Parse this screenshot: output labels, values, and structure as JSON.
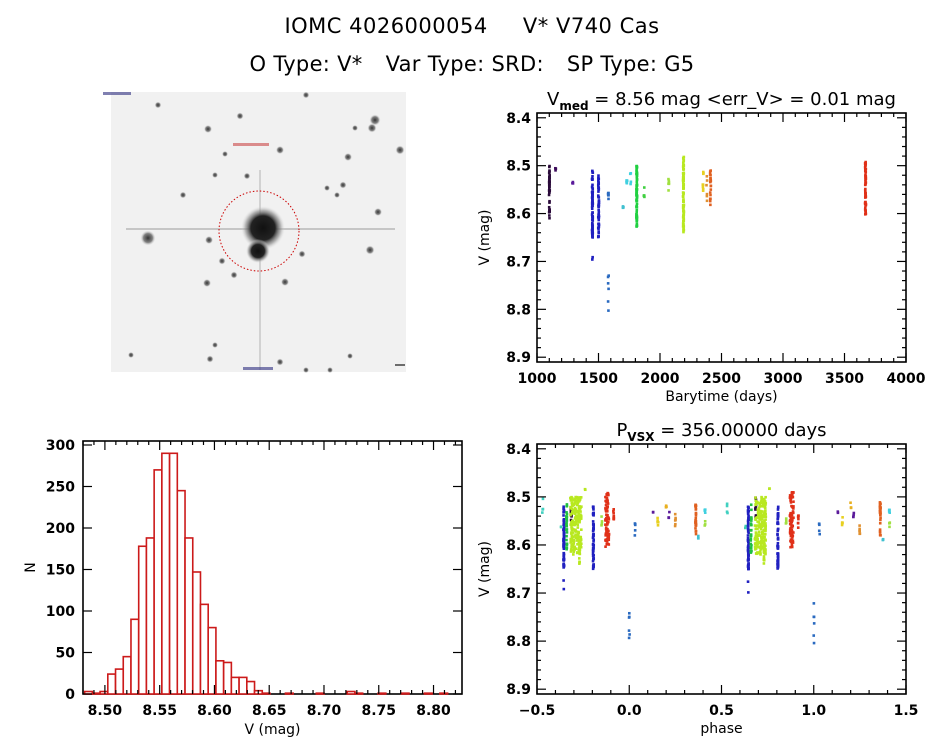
{
  "header": {
    "object_id": "IOMC 4026000054",
    "object_name": "V* V740 Cas",
    "otype": "O Type: V*",
    "vartype": "Var Type: SRD:",
    "sptype": "SP Type: G5"
  },
  "sky_image": {
    "description": "grayscale finder chart with red circle around target star",
    "circle_color": "#cc0000"
  },
  "chart_data": [
    {
      "id": "light-curve",
      "type": "scatter",
      "title_main": "V",
      "title_sub": "med",
      "title_rest": " = 8.56 mag <err_V> = 0.01 mag",
      "xlabel": "Barytime (days)",
      "ylabel": "V (mag)",
      "xlim": [
        1000,
        4000
      ],
      "ylim": [
        8.91,
        8.39
      ],
      "y_inverted": true,
      "xticks": [
        "1000",
        "1500",
        "2000",
        "2500",
        "3000",
        "3500",
        "4000"
      ],
      "yticks": [
        "8.4",
        "8.5",
        "8.6",
        "8.7",
        "8.8",
        "8.9"
      ],
      "series": [
        {
          "color": "#2a0a3a",
          "x": 1100,
          "ymin": 8.5,
          "ymax": 8.61,
          "n": 40
        },
        {
          "color": "#3c0a5a",
          "x": 1150,
          "ymin": 8.5,
          "ymax": 8.51,
          "n": 3
        },
        {
          "color": "#5a1a9a",
          "x": 1290,
          "ymin": 8.53,
          "ymax": 8.54,
          "n": 3
        },
        {
          "color": "#2020c0",
          "x": 1450,
          "ymin": 8.51,
          "ymax": 8.65,
          "n": 80
        },
        {
          "color": "#2020c0",
          "x": 1450,
          "ymin": 8.67,
          "ymax": 8.7,
          "n": 2
        },
        {
          "color": "#2020c0",
          "x": 1500,
          "ymin": 8.52,
          "ymax": 8.65,
          "n": 50
        },
        {
          "color": "#2a6ac0",
          "x": 1580,
          "ymin": 8.555,
          "ymax": 8.58,
          "n": 6
        },
        {
          "color": "#2a6ac0",
          "x": 1580,
          "ymin": 8.72,
          "ymax": 8.81,
          "n": 6
        },
        {
          "color": "#40c0d0",
          "x": 1700,
          "ymin": 8.58,
          "ymax": 8.59,
          "n": 4
        },
        {
          "color": "#40d0e0",
          "x": 1730,
          "ymin": 8.53,
          "ymax": 8.545,
          "n": 5
        },
        {
          "color": "#40d0e0",
          "x": 1760,
          "ymin": 8.51,
          "ymax": 8.54,
          "n": 4
        },
        {
          "color": "#20d040",
          "x": 1810,
          "ymin": 8.5,
          "ymax": 8.63,
          "n": 70
        },
        {
          "color": "#40d040",
          "x": 1870,
          "ymin": 8.545,
          "ymax": 8.565,
          "n": 5
        },
        {
          "color": "#a0e040",
          "x": 2070,
          "ymin": 8.52,
          "ymax": 8.57,
          "n": 6
        },
        {
          "color": "#b8e820",
          "x": 2190,
          "ymin": 8.48,
          "ymax": 8.64,
          "n": 90
        },
        {
          "color": "#e8d020",
          "x": 2350,
          "ymin": 8.51,
          "ymax": 8.56,
          "n": 8
        },
        {
          "color": "#e09030",
          "x": 2380,
          "ymin": 8.52,
          "ymax": 8.58,
          "n": 6
        },
        {
          "color": "#e06020",
          "x": 2410,
          "ymin": 8.51,
          "ymax": 8.59,
          "n": 20
        },
        {
          "color": "#e03018",
          "x": 3670,
          "ymin": 8.49,
          "ymax": 8.605,
          "n": 60
        }
      ]
    },
    {
      "id": "histogram",
      "type": "bar",
      "xlabel": "V (mag)",
      "ylabel": "N",
      "xlim": [
        8.48,
        8.826
      ],
      "ylim": [
        0,
        310
      ],
      "xticks": [
        "8.50",
        "8.55",
        "8.60",
        "8.65",
        "8.70",
        "8.75",
        "8.80"
      ],
      "yticks": [
        "0",
        "50",
        "100",
        "150",
        "200",
        "250",
        "300"
      ],
      "bar_color": "#cc1a1a",
      "bin_start": 8.4815,
      "bin_width": 0.00705,
      "values": [
        3,
        1,
        3,
        24,
        30,
        45,
        90,
        178,
        188,
        270,
        290,
        290,
        245,
        188,
        147,
        108,
        80,
        40,
        38,
        20,
        20,
        15,
        4,
        1,
        0,
        0,
        1,
        0,
        0,
        0,
        1,
        0,
        0,
        0,
        3,
        1,
        0,
        0,
        1,
        0,
        0,
        1,
        0,
        0,
        1,
        0,
        1
      ]
    },
    {
      "id": "phase-curve",
      "type": "scatter",
      "title_main": "P",
      "title_sub": "VSX",
      "title_rest": " = 356.00000 days",
      "xlabel": "phase",
      "ylabel": "V (mag)",
      "xlim": [
        -0.5,
        1.5
      ],
      "ylim": [
        8.91,
        8.39
      ],
      "y_inverted": true,
      "xticks": [
        "-0.5",
        "0.0",
        "0.5",
        "1.0",
        "1.5"
      ],
      "yticks": [
        "8.4",
        "8.5",
        "8.6",
        "8.7",
        "8.8",
        "8.9"
      ],
      "period_days": 356.0,
      "series": [
        {
          "color": "#40d0c0",
          "x": -0.47,
          "ymin": 8.5,
          "ymax": 8.54,
          "n": 4
        },
        {
          "color": "#40d0b0",
          "x": -0.37,
          "ymin": 8.56,
          "ymax": 8.565,
          "n": 2
        },
        {
          "color": "#2020c0",
          "x": -0.355,
          "ymin": 8.52,
          "ymax": 8.65,
          "n": 70
        },
        {
          "color": "#2020c0",
          "x": -0.355,
          "ymin": 8.67,
          "ymax": 8.7,
          "n": 2
        },
        {
          "color": "#20c040",
          "x": -0.34,
          "ymin": 8.51,
          "ymax": 8.62,
          "n": 25
        },
        {
          "color": "#2a0a3a",
          "x": -0.315,
          "ymin": 8.5,
          "ymax": 8.55,
          "n": 10
        },
        {
          "color": "#b8e820",
          "x": -0.29,
          "ymin": 8.5,
          "ymax": 8.62,
          "n": 200,
          "spread": 0.06
        },
        {
          "color": "#b8e820",
          "x": -0.27,
          "ymin": 8.6,
          "ymax": 8.64,
          "n": 12
        },
        {
          "color": "#b8e820",
          "x": -0.24,
          "ymin": 8.48,
          "ymax": 8.485,
          "n": 2
        },
        {
          "color": "#2020c0",
          "x": -0.195,
          "ymin": 8.52,
          "ymax": 8.65,
          "n": 60
        },
        {
          "color": "#a0e040",
          "x": -0.15,
          "ymin": 8.54,
          "ymax": 8.56,
          "n": 4
        },
        {
          "color": "#e03018",
          "x": -0.12,
          "ymin": 8.49,
          "ymax": 8.605,
          "n": 80,
          "spread": 0.02
        },
        {
          "color": "#e03018",
          "x": -0.085,
          "ymin": 8.525,
          "ymax": 8.565,
          "n": 8
        },
        {
          "color": "#2a6ac0",
          "x": 0.0,
          "ymin": 8.72,
          "ymax": 8.81,
          "n": 6
        },
        {
          "color": "#2a6ac0",
          "x": 0.03,
          "ymin": 8.55,
          "ymax": 8.58,
          "n": 5
        },
        {
          "color": "#5a1a9a",
          "x": 0.13,
          "ymin": 8.53,
          "ymax": 8.535,
          "n": 2
        },
        {
          "color": "#e8d020",
          "x": 0.155,
          "ymin": 8.54,
          "ymax": 8.56,
          "n": 5
        },
        {
          "color": "#e8b020",
          "x": 0.2,
          "ymin": 8.51,
          "ymax": 8.525,
          "n": 3
        },
        {
          "color": "#5a1a9a",
          "x": 0.215,
          "ymin": 8.53,
          "ymax": 8.545,
          "n": 4
        },
        {
          "color": "#e09030",
          "x": 0.25,
          "ymin": 8.52,
          "ymax": 8.58,
          "n": 6
        },
        {
          "color": "#e06020",
          "x": 0.36,
          "ymin": 8.51,
          "ymax": 8.58,
          "n": 25
        },
        {
          "color": "#40c0d0",
          "x": 0.375,
          "ymin": 8.58,
          "ymax": 8.59,
          "n": 3
        },
        {
          "color": "#40d0e0",
          "x": 0.41,
          "ymin": 8.525,
          "ymax": 8.54,
          "n": 4
        },
        {
          "color": "#a0e040",
          "x": 0.41,
          "ymin": 8.55,
          "ymax": 8.565,
          "n": 3
        },
        {
          "color": "#40d0c0",
          "x": 0.53,
          "ymin": 8.5,
          "ymax": 8.54,
          "n": 4
        },
        {
          "color": "#40d0b0",
          "x": 0.63,
          "ymin": 8.56,
          "ymax": 8.565,
          "n": 2
        },
        {
          "color": "#2020c0",
          "x": 0.645,
          "ymin": 8.52,
          "ymax": 8.65,
          "n": 70
        },
        {
          "color": "#2020c0",
          "x": 0.645,
          "ymin": 8.67,
          "ymax": 8.7,
          "n": 2
        },
        {
          "color": "#20c040",
          "x": 0.66,
          "ymin": 8.51,
          "ymax": 8.62,
          "n": 25
        },
        {
          "color": "#2a0a3a",
          "x": 0.685,
          "ymin": 8.5,
          "ymax": 8.55,
          "n": 10
        },
        {
          "color": "#b8e820",
          "x": 0.71,
          "ymin": 8.5,
          "ymax": 8.62,
          "n": 200,
          "spread": 0.06
        },
        {
          "color": "#b8e820",
          "x": 0.73,
          "ymin": 8.6,
          "ymax": 8.64,
          "n": 12
        },
        {
          "color": "#b8e820",
          "x": 0.76,
          "ymin": 8.48,
          "ymax": 8.485,
          "n": 2
        },
        {
          "color": "#2020c0",
          "x": 0.805,
          "ymin": 8.52,
          "ymax": 8.65,
          "n": 60
        },
        {
          "color": "#a0e040",
          "x": 0.85,
          "ymin": 8.54,
          "ymax": 8.56,
          "n": 4
        },
        {
          "color": "#e03018",
          "x": 0.88,
          "ymin": 8.49,
          "ymax": 8.605,
          "n": 80,
          "spread": 0.02
        },
        {
          "color": "#e03018",
          "x": 0.915,
          "ymin": 8.525,
          "ymax": 8.565,
          "n": 8
        },
        {
          "color": "#2a6ac0",
          "x": 1.0,
          "ymin": 8.72,
          "ymax": 8.81,
          "n": 6
        },
        {
          "color": "#2a6ac0",
          "x": 1.03,
          "ymin": 8.55,
          "ymax": 8.58,
          "n": 5
        },
        {
          "color": "#5a1a9a",
          "x": 1.13,
          "ymin": 8.53,
          "ymax": 8.535,
          "n": 2
        },
        {
          "color": "#e8d020",
          "x": 1.155,
          "ymin": 8.54,
          "ymax": 8.56,
          "n": 5
        },
        {
          "color": "#e8b020",
          "x": 1.2,
          "ymin": 8.51,
          "ymax": 8.525,
          "n": 3
        },
        {
          "color": "#5a1a9a",
          "x": 1.215,
          "ymin": 8.53,
          "ymax": 8.545,
          "n": 4
        },
        {
          "color": "#e09030",
          "x": 1.25,
          "ymin": 8.52,
          "ymax": 8.58,
          "n": 6
        },
        {
          "color": "#e06020",
          "x": 1.36,
          "ymin": 8.51,
          "ymax": 8.58,
          "n": 25
        },
        {
          "color": "#40c0d0",
          "x": 1.375,
          "ymin": 8.58,
          "ymax": 8.59,
          "n": 3
        },
        {
          "color": "#40d0e0",
          "x": 1.41,
          "ymin": 8.525,
          "ymax": 8.54,
          "n": 4
        },
        {
          "color": "#a0e040",
          "x": 1.41,
          "ymin": 8.55,
          "ymax": 8.565,
          "n": 3
        }
      ]
    }
  ]
}
